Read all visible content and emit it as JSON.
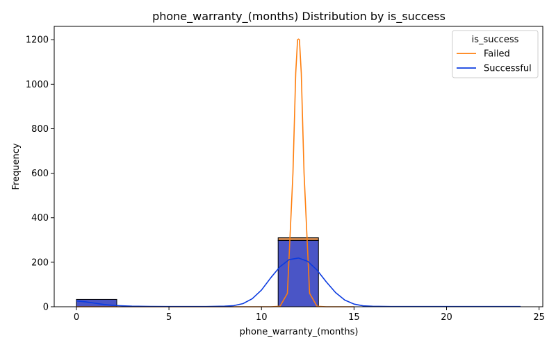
{
  "chart_data": {
    "type": "histogram",
    "title": "phone_warranty_(months) Distribution by is_success",
    "xlabel": "phone_warranty_(months)",
    "ylabel": "Frequency",
    "xlim": [
      -1.2,
      25.2
    ],
    "ylim": [
      0,
      1260
    ],
    "xticks": [
      0,
      5,
      10,
      15,
      20,
      25
    ],
    "yticks": [
      0,
      200,
      400,
      600,
      800,
      1000,
      1200
    ],
    "grid": false,
    "legend": {
      "title": "is_success",
      "placement": "top-right",
      "entries": [
        "Failed",
        "Successful"
      ]
    },
    "stacked": true,
    "bins": [
      {
        "x0": 0,
        "x1": 2.18,
        "Successful": 33,
        "Failed": 0
      },
      {
        "x0": 10.9,
        "x1": 13.08,
        "Successful": 298,
        "Failed": 12
      }
    ],
    "series": [
      {
        "name": "Failed",
        "color": "#ff7f0e",
        "kde": {
          "x": [
            0,
            10.5,
            11.0,
            11.4,
            11.7,
            11.85,
            11.95,
            12.0,
            12.05,
            12.15,
            12.3,
            12.6,
            13.0,
            13.5,
            15
          ],
          "y": [
            0,
            0,
            2,
            60,
            600,
            1050,
            1200,
            1203,
            1200,
            1050,
            600,
            60,
            2,
            0,
            0
          ]
        }
      },
      {
        "name": "Successful",
        "color": "#0b3be0",
        "fill": "#4a55c6",
        "kde": {
          "x": [
            0,
            0.5,
            1,
            1.5,
            2,
            2.5,
            3,
            4,
            5,
            6,
            7,
            8,
            8.5,
            9,
            9.5,
            10,
            10.5,
            11,
            11.5,
            12,
            12.5,
            13,
            13.5,
            14,
            14.5,
            15,
            15.5,
            16,
            17,
            18,
            20,
            22,
            24
          ],
          "y": [
            26,
            22,
            16,
            10,
            6,
            4,
            2.5,
            1.5,
            1.0,
            1.0,
            1.0,
            2.5,
            5,
            14,
            36,
            75,
            130,
            180,
            212,
            219,
            204,
            165,
            112,
            64,
            30,
            12,
            4,
            2,
            1,
            1,
            1,
            1,
            1
          ]
        }
      }
    ]
  }
}
